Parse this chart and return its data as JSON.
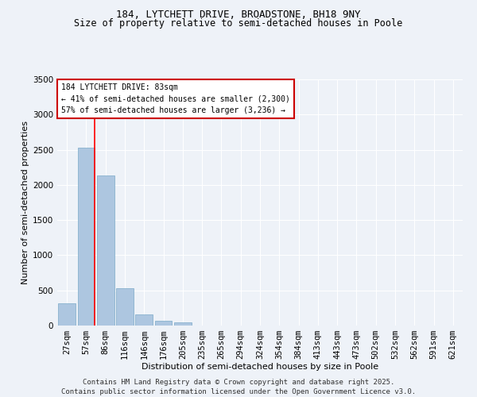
{
  "title": "184, LYTCHETT DRIVE, BROADSTONE, BH18 9NY",
  "subtitle": "Size of property relative to semi-detached houses in Poole",
  "xlabel": "Distribution of semi-detached houses by size in Poole",
  "ylabel": "Number of semi-detached properties",
  "bar_color": "#adc6e0",
  "bar_edge_color": "#7aaac8",
  "categories": [
    "27sqm",
    "57sqm",
    "86sqm",
    "116sqm",
    "146sqm",
    "176sqm",
    "205sqm",
    "235sqm",
    "265sqm",
    "294sqm",
    "324sqm",
    "354sqm",
    "384sqm",
    "413sqm",
    "443sqm",
    "473sqm",
    "502sqm",
    "532sqm",
    "562sqm",
    "591sqm",
    "621sqm"
  ],
  "values": [
    320,
    2530,
    2130,
    530,
    160,
    65,
    45,
    0,
    0,
    0,
    0,
    0,
    0,
    0,
    0,
    0,
    0,
    0,
    0,
    0,
    0
  ],
  "ylim": [
    0,
    3500
  ],
  "yticks": [
    0,
    500,
    1000,
    1500,
    2000,
    2500,
    3000,
    3500
  ],
  "property_line_bin": 1,
  "annotation_title": "184 LYTCHETT DRIVE: 83sqm",
  "annotation_line1": "← 41% of semi-detached houses are smaller (2,300)",
  "annotation_line2": "57% of semi-detached houses are larger (3,236) →",
  "annotation_box_color": "#ffffff",
  "annotation_box_edge_color": "#cc0000",
  "footer_line1": "Contains HM Land Registry data © Crown copyright and database right 2025.",
  "footer_line2": "Contains public sector information licensed under the Open Government Licence v3.0.",
  "background_color": "#eef2f8",
  "grid_color": "#ffffff",
  "title_fontsize": 9,
  "subtitle_fontsize": 8.5,
  "axis_label_fontsize": 8,
  "tick_fontsize": 7.5,
  "footer_fontsize": 6.5,
  "annot_fontsize": 7
}
